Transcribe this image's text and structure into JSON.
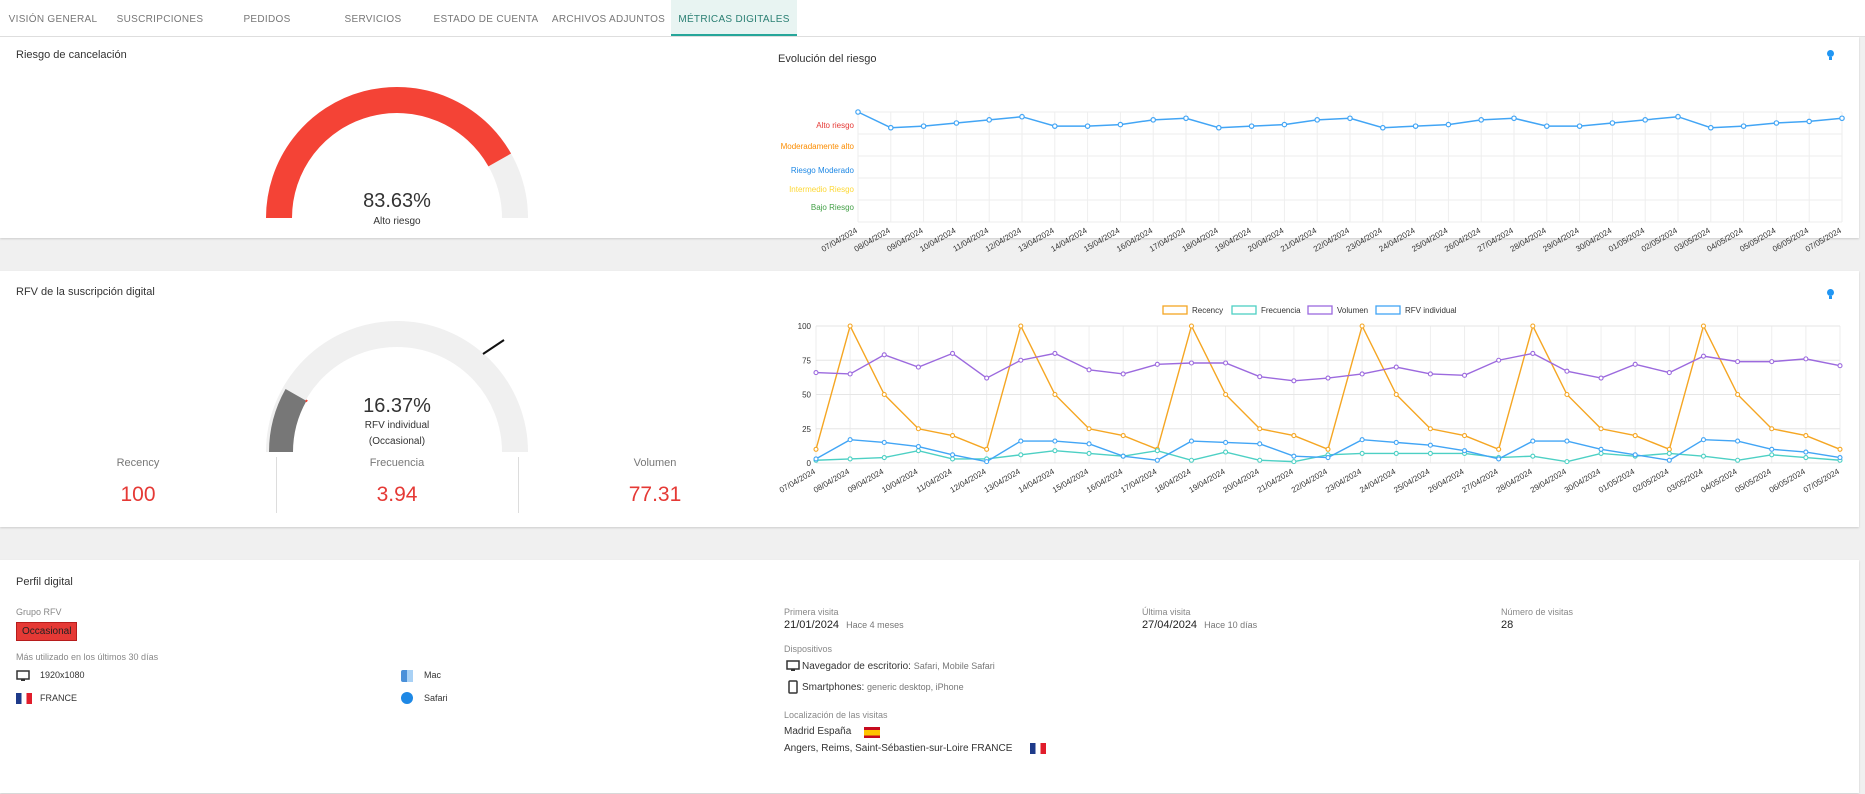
{
  "tabs": [
    {
      "label": "VISIÓN GENERAL",
      "active": false
    },
    {
      "label": "SUSCRIPCIONES",
      "active": false
    },
    {
      "label": "PEDIDOS",
      "active": false
    },
    {
      "label": "SERVICIOS",
      "active": false
    },
    {
      "label": "ESTADO DE CUENTA",
      "active": false
    },
    {
      "label": "ARCHIVOS ADJUNTOS",
      "active": false
    },
    {
      "label": "MÉTRICAS DIGITALES",
      "active": true
    }
  ],
  "cancel": {
    "title": "Riesgo de cancelación",
    "gauge_percent": 83.63,
    "value": "83.63%",
    "label": "Alto riesgo",
    "color": "#f44336"
  },
  "risk_evolution": {
    "title": "Evolución del riesgo",
    "chart_data": {
      "type": "line",
      "title": "Evolución del riesgo",
      "categories": [
        "07/04/2024",
        "08/04/2024",
        "09/04/2024",
        "10/04/2024",
        "11/04/2024",
        "12/04/2024",
        "13/04/2024",
        "14/04/2024",
        "15/04/2024",
        "16/04/2024",
        "17/04/2024",
        "18/04/2024",
        "19/04/2024",
        "20/04/2024",
        "21/04/2024",
        "22/04/2024",
        "23/04/2024",
        "24/04/2024",
        "25/04/2024",
        "26/04/2024",
        "27/04/2024",
        "28/04/2024",
        "29/04/2024",
        "30/04/2024",
        "01/05/2024",
        "02/05/2024",
        "03/05/2024",
        "04/05/2024",
        "05/05/2024",
        "06/05/2024",
        "07/05/2024"
      ],
      "y_levels": [
        {
          "label": "Alto riesgo",
          "color": "#e53935"
        },
        {
          "label": "Moderadamente alto",
          "color": "#fb8c00"
        },
        {
          "label": "Riesgo Moderado",
          "color": "#1e88e5"
        },
        {
          "label": "Intermedio Riesgo",
          "color": "#fdd835"
        },
        {
          "label": "Bajo Riesgo",
          "color": "#43a047"
        }
      ],
      "series": [
        {
          "color": "#42a5f5",
          "values": [
            85,
            75,
            76,
            78,
            80,
            82,
            76,
            76,
            77,
            80,
            81,
            75,
            76,
            77,
            80,
            81,
            75,
            76,
            77,
            80,
            81,
            76,
            76,
            78,
            80,
            82,
            75,
            76,
            78,
            79,
            81
          ]
        }
      ],
      "grid": true
    }
  },
  "rfv_card": {
    "title": "RFV de la suscripción digital",
    "gauge_percent": 16.37,
    "value": "16.37%",
    "label1": "RFV individual",
    "label2": "(Occasional)",
    "stats": [
      {
        "label": "Recency",
        "value": "100"
      },
      {
        "label": "Frecuencia",
        "value": "3.94"
      },
      {
        "label": "Volumen",
        "value": "77.31"
      }
    ]
  },
  "rfv_chart": {
    "chart_data": {
      "type": "line",
      "categories": [
        "07/04/2024",
        "08/04/2024",
        "09/04/2024",
        "10/04/2024",
        "11/04/2024",
        "12/04/2024",
        "13/04/2024",
        "14/04/2024",
        "15/04/2024",
        "16/04/2024",
        "17/04/2024",
        "18/04/2024",
        "19/04/2024",
        "20/04/2024",
        "21/04/2024",
        "22/04/2024",
        "23/04/2024",
        "24/04/2024",
        "25/04/2024",
        "26/04/2024",
        "27/04/2024",
        "28/04/2024",
        "29/04/2024",
        "30/04/2024",
        "01/05/2024",
        "02/05/2024",
        "03/05/2024",
        "04/05/2024",
        "05/05/2024",
        "06/05/2024",
        "07/05/2024"
      ],
      "ylim": [
        0,
        100
      ],
      "yticks": [
        "0",
        "25",
        "50",
        "75",
        "100"
      ],
      "legend_position": "top",
      "series": [
        {
          "name": "Recency",
          "color": "#f5a623",
          "values": [
            10,
            100,
            50,
            25,
            20,
            10,
            100,
            50,
            25,
            20,
            10,
            100,
            50,
            25,
            20,
            10,
            100,
            50,
            25,
            20,
            10,
            100,
            50,
            25,
            20,
            10,
            100,
            50,
            25,
            20,
            10
          ]
        },
        {
          "name": "Frecuencia",
          "color": "#4dd0c4",
          "values": [
            2,
            3,
            4,
            9,
            3,
            3,
            6,
            9,
            7,
            5,
            9,
            2,
            8,
            2,
            1,
            6,
            7,
            7,
            7,
            7,
            4,
            5,
            1,
            7,
            5,
            7,
            5,
            2,
            6,
            4,
            2
          ]
        },
        {
          "name": "Volumen",
          "color": "#9c6ade",
          "values": [
            66,
            65,
            79,
            70,
            80,
            62,
            75,
            80,
            68,
            65,
            72,
            73,
            73,
            63,
            60,
            62,
            65,
            70,
            65,
            64,
            75,
            80,
            67,
            62,
            72,
            66,
            78,
            74,
            74,
            76,
            71
          ]
        },
        {
          "name": "RFV individual",
          "color": "#42a5f5",
          "values": [
            3,
            17,
            15,
            12,
            6,
            1,
            16,
            16,
            14,
            5,
            2,
            16,
            15,
            14,
            5,
            4,
            17,
            15,
            13,
            9,
            3,
            16,
            16,
            10,
            6,
            2,
            17,
            16,
            10,
            8,
            4
          ]
        }
      ]
    }
  },
  "profile": {
    "title": "Perfil digital",
    "group_label": "Grupo RFV",
    "group_value": "Occasional",
    "most_used_label": "Más utilizado en los últimos 30 días",
    "resolution": "1920x1080",
    "country": "FRANCE",
    "os": "Mac",
    "browser": "Safari",
    "first_visit_label": "Primera visita",
    "first_visit_date": "21/01/2024",
    "first_visit_ago": "Hace 4 meses",
    "last_visit_label": "Última visita",
    "last_visit_date": "27/04/2024",
    "last_visit_ago": "Hace 10 días",
    "visits_label": "Número de visitas",
    "visits_value": "28",
    "devices_label": "Dispositivos",
    "desktop_label": "Navegador de escritorio:",
    "desktop_value": "Safari, Mobile Safari",
    "smartphone_label": "Smartphones:",
    "smartphone_value": "generic desktop, iPhone",
    "locations_label": "Localización de las visitas",
    "location1": "Madrid España",
    "location2": "Angers, Reims, Saint-Sébastien-sur-Loire FRANCE"
  }
}
